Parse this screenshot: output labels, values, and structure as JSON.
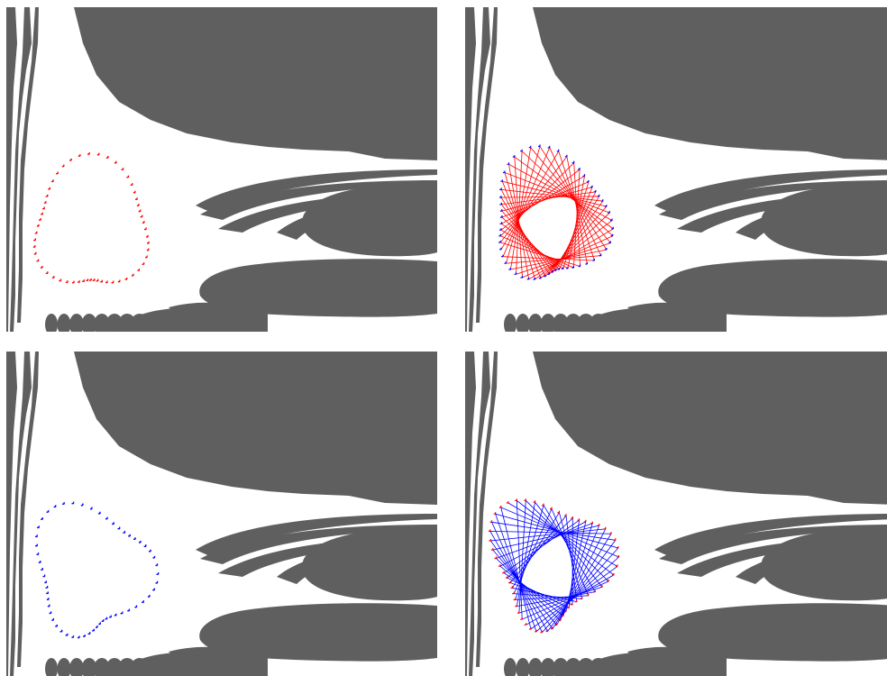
{
  "colors": {
    "background": "#ffffff",
    "basin": "#5f5f5f",
    "red": "#ff0000",
    "blue": "#0000ff"
  },
  "panels": [
    {
      "id": "top-left",
      "mode": "points",
      "point_color": "red",
      "line_color": null
    },
    {
      "id": "top-right",
      "mode": "trajectory",
      "point_color": "blue",
      "line_color": "red"
    },
    {
      "id": "bottom-left",
      "mode": "points",
      "point_color": "blue",
      "line_color": null
    },
    {
      "id": "bottom-right",
      "mode": "trajectory",
      "point_color": "red",
      "line_color": "blue"
    }
  ]
}
